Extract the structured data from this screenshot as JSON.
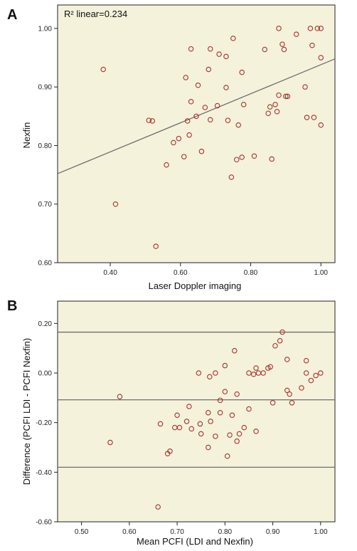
{
  "chart_data": [
    {
      "panel_label": "A",
      "type": "scatter",
      "xlabel": "Laser Doppler imaging",
      "ylabel": "Nexfin",
      "annotation": "R² linear=0.234",
      "xlim": [
        0.25,
        1.04
      ],
      "ylim": [
        0.6,
        1.04
      ],
      "xticks": [
        "0.40",
        "0.60",
        "0.80",
        "1.00"
      ],
      "yticks": [
        "0.60",
        "0.70",
        "0.80",
        "0.90",
        "1.00"
      ],
      "fit_line": {
        "x": [
          0.25,
          1.04
        ],
        "y": [
          0.752,
          0.948
        ]
      },
      "points": [
        [
          0.38,
          0.93
        ],
        [
          0.415,
          0.7
        ],
        [
          0.51,
          0.843
        ],
        [
          0.52,
          0.842
        ],
        [
          0.53,
          0.628
        ],
        [
          0.56,
          0.767
        ],
        [
          0.58,
          0.805
        ],
        [
          0.595,
          0.812
        ],
        [
          0.61,
          0.781
        ],
        [
          0.615,
          0.916
        ],
        [
          0.62,
          0.842
        ],
        [
          0.625,
          0.818
        ],
        [
          0.63,
          0.875
        ],
        [
          0.63,
          0.965
        ],
        [
          0.645,
          0.85
        ],
        [
          0.65,
          0.903
        ],
        [
          0.66,
          0.79
        ],
        [
          0.67,
          0.865
        ],
        [
          0.68,
          0.93
        ],
        [
          0.685,
          0.965
        ],
        [
          0.685,
          0.844
        ],
        [
          0.705,
          0.868
        ],
        [
          0.71,
          0.956
        ],
        [
          0.73,
          0.899
        ],
        [
          0.73,
          0.952
        ],
        [
          0.735,
          0.843
        ],
        [
          0.745,
          0.746
        ],
        [
          0.75,
          0.983
        ],
        [
          0.76,
          0.776
        ],
        [
          0.765,
          0.835
        ],
        [
          0.775,
          0.925
        ],
        [
          0.775,
          0.78
        ],
        [
          0.78,
          0.87
        ],
        [
          0.81,
          0.782
        ],
        [
          0.84,
          0.964
        ],
        [
          0.85,
          0.855
        ],
        [
          0.855,
          0.866
        ],
        [
          0.86,
          0.777
        ],
        [
          0.87,
          0.87
        ],
        [
          0.875,
          0.858
        ],
        [
          0.88,
          1.0
        ],
        [
          0.88,
          0.886
        ],
        [
          0.89,
          0.973
        ],
        [
          0.895,
          0.964
        ],
        [
          0.905,
          0.884
        ],
        [
          0.9,
          0.884
        ],
        [
          0.93,
          0.99
        ],
        [
          0.955,
          0.9
        ],
        [
          0.96,
          0.848
        ],
        [
          0.97,
          1.0
        ],
        [
          0.975,
          0.971
        ],
        [
          0.98,
          0.848
        ],
        [
          0.99,
          1.0
        ],
        [
          1.0,
          1.0
        ],
        [
          1.0,
          0.95
        ],
        [
          1.0,
          0.835
        ]
      ]
    },
    {
      "panel_label": "B",
      "type": "scatter",
      "xlabel": "Mean PCFI (LDI and Nexfin)",
      "ylabel": "Difference (PCFI LDI - PCFI Nexfin)",
      "xlim": [
        0.45,
        1.03
      ],
      "ylim": [
        -0.6,
        0.29
      ],
      "xticks": [
        "0.50",
        "0.60",
        "0.70",
        "0.80",
        "0.90",
        "1.00"
      ],
      "yticks": [
        "-0.60",
        "-0.40",
        "-0.20",
        "0.00",
        "0.20"
      ],
      "hlines": [
        0.165,
        -0.108,
        -0.38
      ],
      "points": [
        [
          0.56,
          -0.28
        ],
        [
          0.58,
          -0.095
        ],
        [
          0.66,
          -0.54
        ],
        [
          0.665,
          -0.205
        ],
        [
          0.68,
          -0.325
        ],
        [
          0.685,
          -0.315
        ],
        [
          0.695,
          -0.22
        ],
        [
          0.7,
          -0.17
        ],
        [
          0.705,
          -0.22
        ],
        [
          0.72,
          -0.195
        ],
        [
          0.725,
          -0.135
        ],
        [
          0.73,
          -0.225
        ],
        [
          0.745,
          0.0
        ],
        [
          0.748,
          -0.205
        ],
        [
          0.75,
          -0.245
        ],
        [
          0.765,
          -0.16
        ],
        [
          0.765,
          -0.3
        ],
        [
          0.768,
          -0.015
        ],
        [
          0.77,
          -0.195
        ],
        [
          0.78,
          -0.255
        ],
        [
          0.78,
          0.0
        ],
        [
          0.79,
          -0.16
        ],
        [
          0.79,
          -0.11
        ],
        [
          0.8,
          0.03
        ],
        [
          0.8,
          -0.075
        ],
        [
          0.805,
          -0.335
        ],
        [
          0.81,
          -0.25
        ],
        [
          0.815,
          -0.17
        ],
        [
          0.82,
          0.09
        ],
        [
          0.825,
          -0.275
        ],
        [
          0.825,
          -0.085
        ],
        [
          0.83,
          -0.245
        ],
        [
          0.84,
          -0.22
        ],
        [
          0.85,
          -0.145
        ],
        [
          0.85,
          0.0
        ],
        [
          0.86,
          -0.005
        ],
        [
          0.865,
          -0.235
        ],
        [
          0.865,
          0.02
        ],
        [
          0.87,
          0.0
        ],
        [
          0.88,
          0.0
        ],
        [
          0.89,
          0.02
        ],
        [
          0.895,
          0.025
        ],
        [
          0.9,
          -0.12
        ],
        [
          0.905,
          0.11
        ],
        [
          0.915,
          0.13
        ],
        [
          0.92,
          0.165
        ],
        [
          0.93,
          0.055
        ],
        [
          0.93,
          -0.07
        ],
        [
          0.935,
          -0.085
        ],
        [
          0.94,
          -0.12
        ],
        [
          0.96,
          -0.06
        ],
        [
          0.97,
          0.0
        ],
        [
          0.97,
          0.05
        ],
        [
          0.98,
          -0.03
        ],
        [
          0.99,
          -0.01
        ],
        [
          1.0,
          0.0
        ]
      ]
    }
  ],
  "colors": {
    "plot_bg": "#f5f2dc",
    "marker": "#a8322d",
    "line": "#6e6e6e",
    "axis": "#222222"
  }
}
